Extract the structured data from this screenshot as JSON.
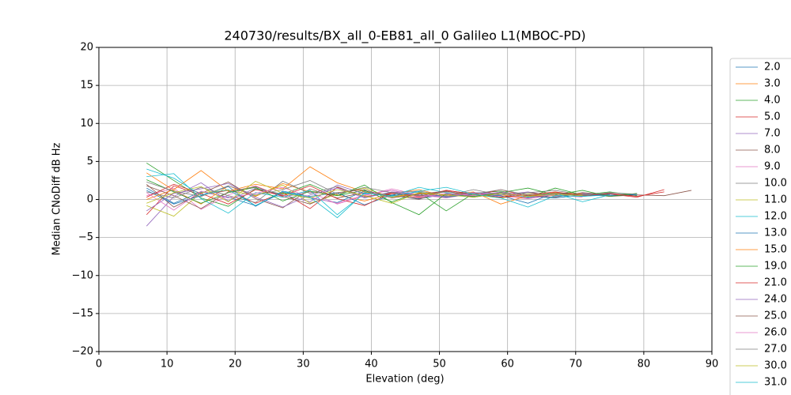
{
  "chart_data": {
    "type": "line",
    "title": "240730/results/BX_all_0-EB81_all_0 Galileo L1(MBOC-PD)",
    "xlabel": "Elevation (deg)",
    "ylabel": "Median CNoDiff dB Hz",
    "x": [
      7,
      11,
      15,
      19,
      23,
      27,
      31,
      35,
      39,
      43,
      47,
      51,
      55,
      59,
      63,
      67,
      71,
      75,
      79,
      83,
      87
    ],
    "xlim": [
      0,
      90
    ],
    "xticks": [
      0,
      10,
      20,
      30,
      40,
      50,
      60,
      70,
      80,
      90
    ],
    "ylim": [
      -20,
      20
    ],
    "yticks": [
      {
        "value": -20,
        "label": "−20"
      },
      {
        "value": -15,
        "label": "−15"
      },
      {
        "value": -10,
        "label": "−10"
      },
      {
        "value": -5,
        "label": "−5"
      },
      0,
      5,
      10,
      15,
      20
    ],
    "grid": true,
    "legend": "outside right",
    "series": [
      {
        "name": "2.0",
        "color": "#1f77b4",
        "values": [
          1.5,
          -0.5,
          1.0,
          0.3,
          -0.8,
          0.9,
          0.2,
          -0.4,
          1.1,
          0.5,
          0.1,
          0.7,
          0.3,
          0.9,
          0.4,
          0.2,
          0.6,
          0.5,
          0.7,
          null,
          null
        ]
      },
      {
        "name": "3.0",
        "color": "#ff7f0e",
        "values": [
          3.5,
          1.2,
          -0.6,
          1.8,
          0.4,
          2.1,
          1.0,
          0.6,
          -0.2,
          0.8,
          1.3,
          0.4,
          0.9,
          0.6,
          0.2,
          0.8,
          0.5,
          0.7,
          null,
          null,
          null
        ]
      },
      {
        "name": "4.0",
        "color": "#2ca02c",
        "values": [
          4.8,
          2.5,
          0.2,
          -0.9,
          1.4,
          0.7,
          2.0,
          0.5,
          1.2,
          -0.3,
          0.9,
          -1.5,
          0.8,
          1.1,
          0.3,
          1.5,
          0.6,
          1.0,
          0.5,
          null,
          null
        ]
      },
      {
        "name": "5.0",
        "color": "#d62728",
        "values": [
          -2.0,
          1.8,
          0.6,
          1.2,
          -0.5,
          0.9,
          -1.2,
          1.6,
          0.4,
          0.8,
          0.2,
          1.1,
          0.5,
          1.3,
          0.4,
          0.9,
          0.5,
          0.7,
          0.3,
          1.3,
          null
        ]
      },
      {
        "name": "7.0",
        "color": "#9467bd",
        "values": [
          -3.5,
          0.4,
          2.2,
          -0.2,
          1.5,
          0.6,
          -0.3,
          1.9,
          0.7,
          1.2,
          0.5,
          0.3,
          0.9,
          0.6,
          1.0,
          0.4,
          0.8,
          0.5,
          null,
          null,
          null
        ]
      },
      {
        "name": "8.0",
        "color": "#8c564b",
        "values": [
          2.0,
          -1.0,
          0.8,
          2.3,
          0.1,
          -1.1,
          1.4,
          0.2,
          0.9,
          0.6,
          0.0,
          1.2,
          0.7,
          0.3,
          0.9,
          0.5,
          0.7,
          0.4,
          0.6,
          0.5,
          1.2
        ]
      },
      {
        "name": "9.0",
        "color": "#e377c2",
        "values": [
          0.5,
          1.5,
          -1.3,
          0.6,
          1.8,
          0.3,
          1.0,
          -0.6,
          0.5,
          1.4,
          0.6,
          0.2,
          0.8,
          0.4,
          0.1,
          0.6,
          0.3,
          null,
          null,
          null,
          null
        ]
      },
      {
        "name": "10.0",
        "color": "#7f7f7f",
        "values": [
          1.0,
          0.2,
          1.6,
          0.5,
          -0.4,
          2.4,
          0.8,
          1.7,
          0.3,
          0.9,
          1.1,
          0.5,
          1.3,
          0.6,
          0.9,
          1.2,
          0.6,
          0.8,
          null,
          null,
          null
        ]
      },
      {
        "name": "11.0",
        "color": "#bcbd22",
        "values": [
          -0.8,
          -2.2,
          0.9,
          1.2,
          0.5,
          1.9,
          -0.5,
          0.7,
          1.5,
          0.3,
          0.8,
          0.4,
          0.6,
          0.2,
          0.7,
          0.5,
          null,
          null,
          null,
          null,
          null
        ]
      },
      {
        "name": "12.0",
        "color": "#17becf",
        "values": [
          3.0,
          3.4,
          0.1,
          -1.8,
          0.9,
          0.3,
          1.2,
          -2.0,
          0.8,
          0.5,
          1.6,
          0.9,
          0.4,
          1.0,
          0.3,
          0.8,
          -0.3,
          0.6,
          null,
          null,
          null
        ]
      },
      {
        "name": "13.0",
        "color": "#1f77b4",
        "values": [
          1.2,
          -0.6,
          0.5,
          1.7,
          -0.9,
          1.1,
          0.4,
          0.9,
          -0.7,
          0.6,
          1.0,
          0.3,
          0.7,
          0.5,
          -0.5,
          0.9,
          0.4,
          0.7,
          0.6,
          null,
          null
        ]
      },
      {
        "name": "15.0",
        "color": "#ff7f0e",
        "values": [
          0.0,
          1.3,
          3.8,
          1.1,
          2.0,
          1.4,
          4.3,
          2.2,
          1.0,
          0.4,
          0.8,
          0.6,
          1.0,
          -0.6,
          0.5,
          0.9,
          0.7,
          null,
          null,
          null,
          null
        ]
      },
      {
        "name": "19.0",
        "color": "#2ca02c",
        "values": [
          2.6,
          1.0,
          -0.5,
          0.9,
          1.6,
          -0.2,
          1.1,
          0.5,
          1.9,
          -0.4,
          -2.0,
          0.8,
          0.4,
          0.9,
          1.5,
          0.6,
          1.2,
          0.4,
          0.8,
          null,
          null
        ]
      },
      {
        "name": "21.0",
        "color": "#d62728",
        "values": [
          0.3,
          2.0,
          0.8,
          -0.6,
          1.3,
          0.5,
          1.8,
          0.1,
          -0.8,
          0.9,
          0.4,
          1.2,
          0.7,
          0.3,
          0.6,
          1.0,
          0.5,
          0.8,
          0.4,
          1.0,
          null
        ]
      },
      {
        "name": "24.0",
        "color": "#9467bd",
        "values": [
          -1.5,
          0.8,
          1.4,
          2.1,
          0.3,
          -1.0,
          0.6,
          1.5,
          0.2,
          1.0,
          0.6,
          0.4,
          0.9,
          0.8,
          0.2,
          0.7,
          0.5,
          null,
          null,
          null,
          null
        ]
      },
      {
        "name": "25.0",
        "color": "#8c564b",
        "values": [
          1.8,
          0.5,
          -1.2,
          1.0,
          1.7,
          0.4,
          -0.6,
          0.9,
          1.3,
          0.2,
          0.7,
          1.1,
          0.3,
          0.8,
          0.5,
          0.3,
          0.9,
          0.6,
          null,
          null,
          null
        ]
      },
      {
        "name": "26.0",
        "color": "#e377c2",
        "values": [
          0.9,
          -1.4,
          1.1,
          0.2,
          0.8,
          1.6,
          0.3,
          -0.5,
          0.6,
          1.2,
          0.3,
          0.8,
          0.5,
          1.0,
          0.4,
          0.6,
          null,
          null,
          null,
          null,
          null
        ]
      },
      {
        "name": "27.0",
        "color": "#7f7f7f",
        "values": [
          2.3,
          1.1,
          0.4,
          1.8,
          0.6,
          1.3,
          2.5,
          0.7,
          1.6,
          0.9,
          0.5,
          1.0,
          0.7,
          1.3,
          0.6,
          0.8,
          0.5,
          0.9,
          0.7,
          null,
          null
        ]
      },
      {
        "name": "30.0",
        "color": "#bcbd22",
        "values": [
          -0.5,
          0.9,
          1.7,
          -0.3,
          2.4,
          0.8,
          0.2,
          1.3,
          0.5,
          -0.5,
          0.9,
          0.6,
          0.3,
          0.8,
          0.4,
          0.7,
          0.5,
          null,
          null,
          null,
          null
        ]
      },
      {
        "name": "31.0",
        "color": "#17becf",
        "values": [
          4.0,
          2.8,
          0.6,
          1.3,
          -0.8,
          1.0,
          0.3,
          -2.4,
          0.9,
          0.4,
          1.1,
          1.6,
          0.7,
          0.2,
          -1.0,
          0.5,
          0.4,
          0.6,
          null,
          null,
          null
        ]
      }
    ]
  }
}
